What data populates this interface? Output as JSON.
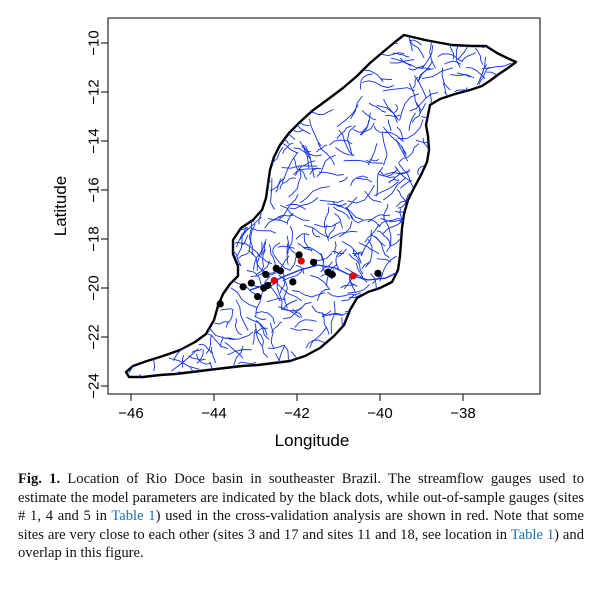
{
  "map": {
    "ylabel": "Latitude",
    "xlabel": "Longitude",
    "x_ticks": [
      "−46",
      "−44",
      "−42",
      "−40",
      "−38"
    ],
    "y_ticks": [
      "−10",
      "−12",
      "−14",
      "−16",
      "−18",
      "−20",
      "−22",
      "−24"
    ],
    "xlim": [
      -47,
      -36.5
    ],
    "ylim": [
      -24.2,
      -9.6
    ],
    "basin_color": "#000000",
    "river_color": "#1030e0",
    "calibration_gauge_color": "#000000",
    "validation_gauge_color": "#e00000"
  },
  "chart_data": {
    "type": "scatter",
    "xlabel": "Longitude",
    "ylabel": "Latitude",
    "xlim": [
      -47,
      -36.5
    ],
    "ylim": [
      -24.2,
      -9.6
    ],
    "series": [
      {
        "values_xy": [
          [
            -43.3,
            -19.95
          ],
          [
            -43.1,
            -19.8
          ],
          [
            -42.95,
            -20.35
          ],
          [
            -42.8,
            -20.0
          ],
          [
            -42.7,
            -19.9
          ],
          [
            -42.75,
            -19.45
          ],
          [
            -42.5,
            -19.2
          ],
          [
            -42.4,
            -19.3
          ],
          [
            -42.1,
            -19.75
          ],
          [
            -41.95,
            -18.65
          ],
          [
            -41.6,
            -18.95
          ],
          [
            -41.25,
            -19.35
          ],
          [
            -41.15,
            -19.45
          ],
          [
            -40.05,
            -19.4
          ],
          [
            -43.85,
            -20.65
          ]
        ]
      },
      {
        "values_xy": [
          [
            -42.55,
            -19.7
          ],
          [
            -41.9,
            -18.9
          ],
          [
            -40.65,
            -19.5
          ]
        ]
      }
    ]
  },
  "caption": {
    "label": "Fig. 1.",
    "text_1": " Location of Rio Doce basin in southeaster Brazil. The streamflow gauges used to estimate the model parameters are indicated by the black dots, while out-of-sample gauges (sites # 1, 4 and 5 in ",
    "link_1": "Table 1",
    "text_2": ") used in the cross-validation analysis are shown in red. Note that some sites are very close to each other (sites 3 and 17 and sites 11 and 18, see location in ",
    "link_2": "Table 1",
    "text_3": ") and overlap in this figure."
  }
}
